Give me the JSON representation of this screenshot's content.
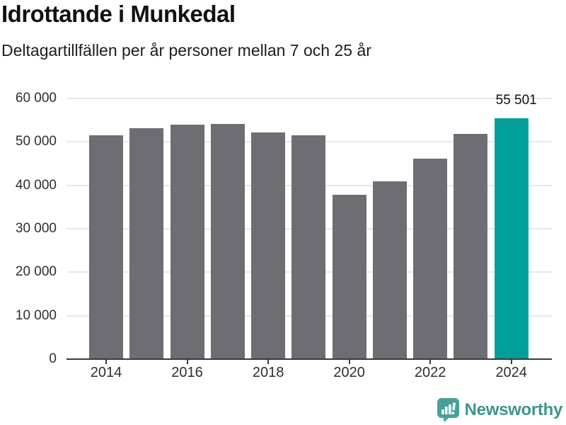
{
  "header": {
    "title": "Idrottande i Munkedal",
    "subtitle": "Deltagartillfällen per år personer mellan 7 och 25 år"
  },
  "chart_data": {
    "type": "bar",
    "categories": [
      2014,
      2015,
      2016,
      2017,
      2018,
      2019,
      2020,
      2021,
      2022,
      2023,
      2024
    ],
    "values": [
      51600,
      53100,
      53900,
      54100,
      52100,
      51600,
      37900,
      40900,
      46200,
      51900,
      55501
    ],
    "title": "Idrottande i Munkedal",
    "subtitle": "Deltagartillfällen per år personer mellan 7 och 25 år",
    "xlabel": "",
    "ylabel": "",
    "ylim": [
      0,
      60000
    ],
    "grid": true,
    "legend": "none",
    "y_ticks": [
      0,
      10000,
      20000,
      30000,
      40000,
      50000,
      60000
    ],
    "y_tick_labels": [
      "0",
      "10 000",
      "20 000",
      "30 000",
      "40 000",
      "50 000",
      "60 000"
    ],
    "x_tick_years": [
      2014,
      2016,
      2018,
      2020,
      2022,
      2024
    ],
    "highlight_index": 10,
    "highlight_value_label": "55 501",
    "bar_color": "#6e6d73",
    "highlight_color": "#00a09a"
  },
  "footer": {
    "brand": "Newsworthy",
    "brand_color": "#3e948e",
    "logo_icon": "newsworthy-bar-chart-bubble-icon",
    "logo_color": "#47a09a"
  }
}
